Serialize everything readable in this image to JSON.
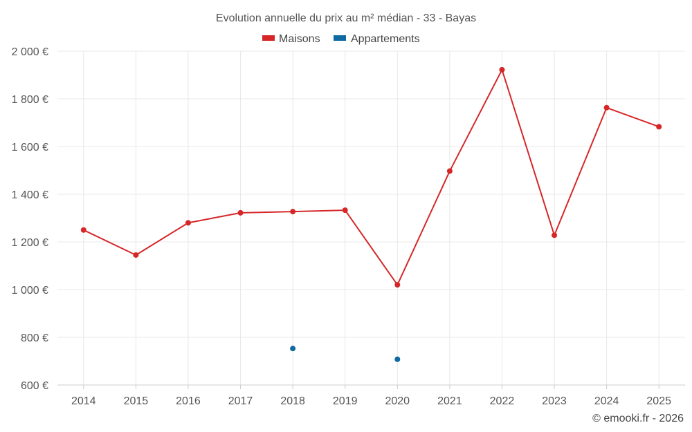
{
  "chart_data": {
    "type": "line",
    "title": "Evolution annuelle du prix au m² médian - 33 - Bayas",
    "credit": "© emooki.fr - 2026",
    "x": [
      "2014",
      "2015",
      "2016",
      "2017",
      "2018",
      "2019",
      "2020",
      "2021",
      "2022",
      "2023",
      "2024",
      "2025"
    ],
    "y_ticks": [
      "600 €",
      "800 €",
      "1 000 €",
      "1 200 €",
      "1 400 €",
      "1 600 €",
      "1 800 €",
      "2 000 €"
    ],
    "ylim": [
      600,
      2000
    ],
    "grid": true,
    "legend_position": "top-center",
    "series": [
      {
        "name": "Maisons",
        "color": "#d62728",
        "values": [
          1250,
          1145,
          1280,
          1322,
          1327,
          1333,
          1020,
          1497,
          1922,
          1228,
          1763,
          1683
        ]
      },
      {
        "name": "Appartements",
        "color": "#0e6aa0",
        "values": [
          null,
          null,
          null,
          null,
          753,
          null,
          708,
          null,
          null,
          null,
          null,
          null
        ]
      }
    ]
  }
}
